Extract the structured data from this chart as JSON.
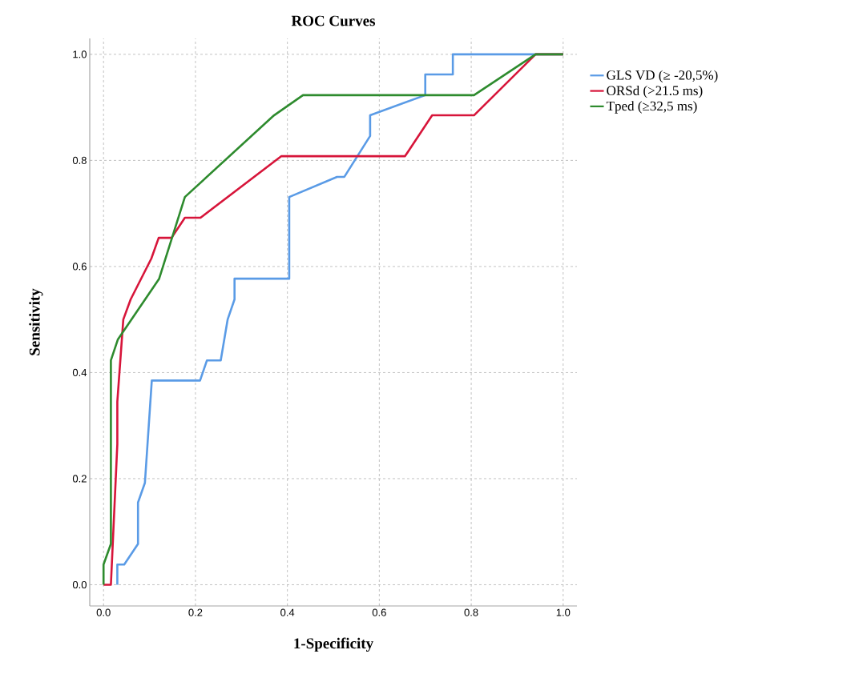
{
  "chart_data": {
    "type": "line",
    "title": "ROC Curves",
    "xlabel": "1-Specificity",
    "ylabel": "Sensitivity",
    "xlim": [
      -0.03,
      1.03
    ],
    "ylim": [
      -0.04,
      1.03
    ],
    "xticks": [
      {
        "value": 0,
        "label": "0.0"
      },
      {
        "value": 0.2,
        "label": "0.2"
      },
      {
        "value": 0.4,
        "label": "0.4"
      },
      {
        "value": 0.6,
        "label": "0.6"
      },
      {
        "value": 0.8,
        "label": "0.8"
      },
      {
        "value": 1,
        "label": "1.0"
      }
    ],
    "yticks": [
      {
        "value": 0,
        "label": "0.0"
      },
      {
        "value": 0.2,
        "label": "0.2"
      },
      {
        "value": 0.4,
        "label": "0.4"
      },
      {
        "value": 0.6,
        "label": "0.6"
      },
      {
        "value": 0.8,
        "label": "0.8"
      },
      {
        "value": 1,
        "label": "1.0"
      }
    ],
    "grid": true,
    "legend": "top right",
    "line_style": "solid",
    "series": [
      {
        "name": "GLS VD (≥ -20,5%)",
        "color": "#5a9be6",
        "x": [
          0.03,
          0.03,
          0.045,
          0.075,
          0.075,
          0.09,
          0.105,
          0.21,
          0.225,
          0.255,
          0.27,
          0.285,
          0.285,
          0.404,
          0.404,
          0.508,
          0.524,
          0.58,
          0.58,
          0.7,
          0.7,
          0.76,
          0.76,
          0.94,
          1.0
        ],
        "values": [
          0,
          0.038,
          0.038,
          0.077,
          0.155,
          0.192,
          0.385,
          0.385,
          0.423,
          0.423,
          0.5,
          0.538,
          0.577,
          0.577,
          0.731,
          0.769,
          0.769,
          0.846,
          0.885,
          0.923,
          0.962,
          0.962,
          1.0,
          1.0,
          1.0
        ]
      },
      {
        "name": "ORSd (>21.5 ms)",
        "color": "#d7153a",
        "x": [
          0.0,
          0.016,
          0.03,
          0.03,
          0.043,
          0.059,
          0.104,
          0.12,
          0.148,
          0.177,
          0.211,
          0.387,
          0.656,
          0.715,
          0.806,
          0.94,
          1.0
        ],
        "values": [
          0,
          0,
          0.265,
          0.345,
          0.5,
          0.538,
          0.615,
          0.654,
          0.654,
          0.692,
          0.692,
          0.808,
          0.808,
          0.885,
          0.885,
          1.0,
          1.0
        ]
      },
      {
        "name": "Tped (≥32,5 ms)",
        "color": "#2e8b2e",
        "x": [
          0.0,
          0.0,
          0.016,
          0.016,
          0.031,
          0.121,
          0.177,
          0.371,
          0.434,
          0.806,
          0.94,
          1.0
        ],
        "values": [
          0,
          0.038,
          0.077,
          0.423,
          0.462,
          0.577,
          0.731,
          0.885,
          0.923,
          0.923,
          1.0,
          1.0
        ]
      }
    ]
  }
}
